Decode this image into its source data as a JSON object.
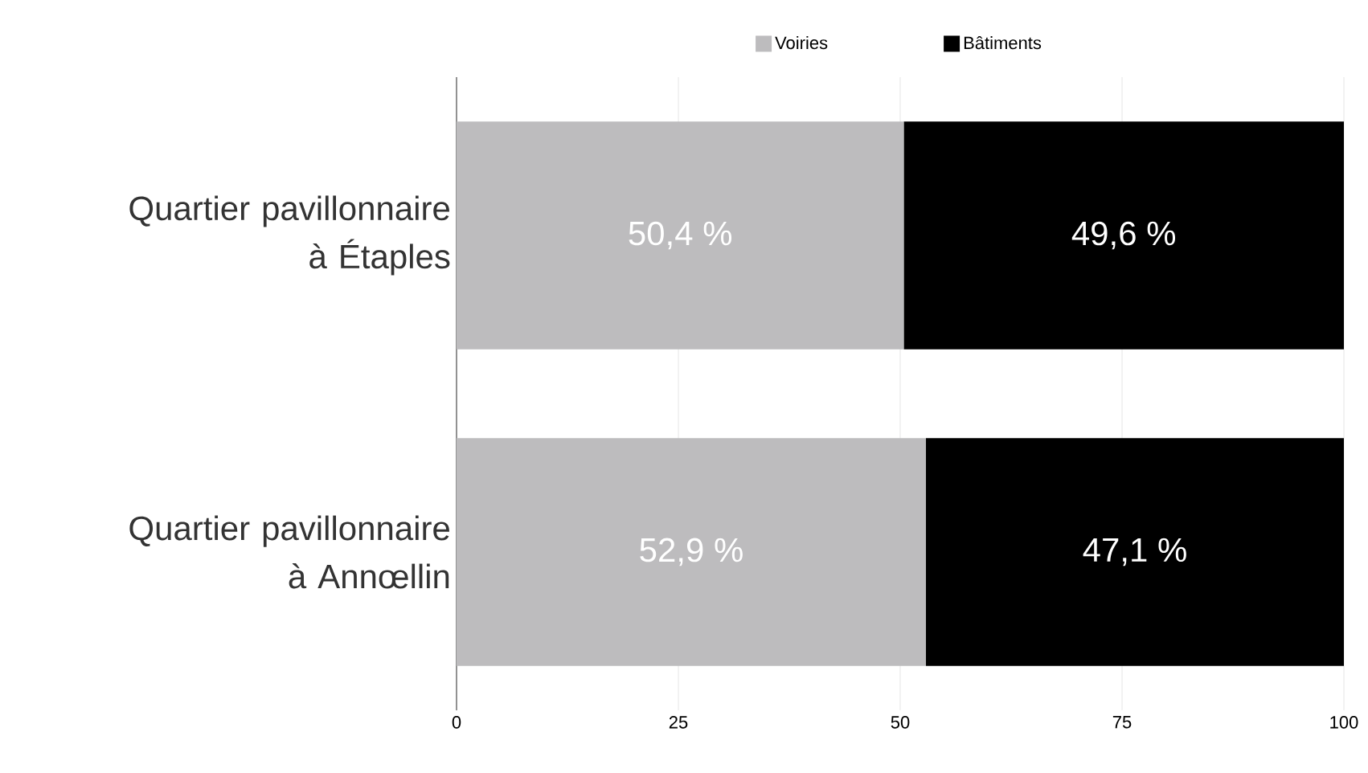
{
  "chart_data": {
    "type": "bar",
    "orientation": "horizontal",
    "stacked": true,
    "categories": [
      "Quartier pavillonnaire à Étaples",
      "Quartier pavillonnaire à Annœllin"
    ],
    "series": [
      {
        "name": "Voiries",
        "color": "#bdbcbe",
        "values": [
          50.4,
          52.9
        ],
        "value_labels": [
          "50,4 %",
          "52,9 %"
        ]
      },
      {
        "name": "Bâtiments",
        "color": "#000000",
        "values": [
          49.6,
          47.1
        ],
        "value_labels": [
          "49,6 %",
          "47,1 %"
        ]
      }
    ],
    "xlim": [
      0,
      100
    ],
    "xticks": [
      0,
      25,
      50,
      75,
      100
    ],
    "grid": "x",
    "legend": "top"
  }
}
